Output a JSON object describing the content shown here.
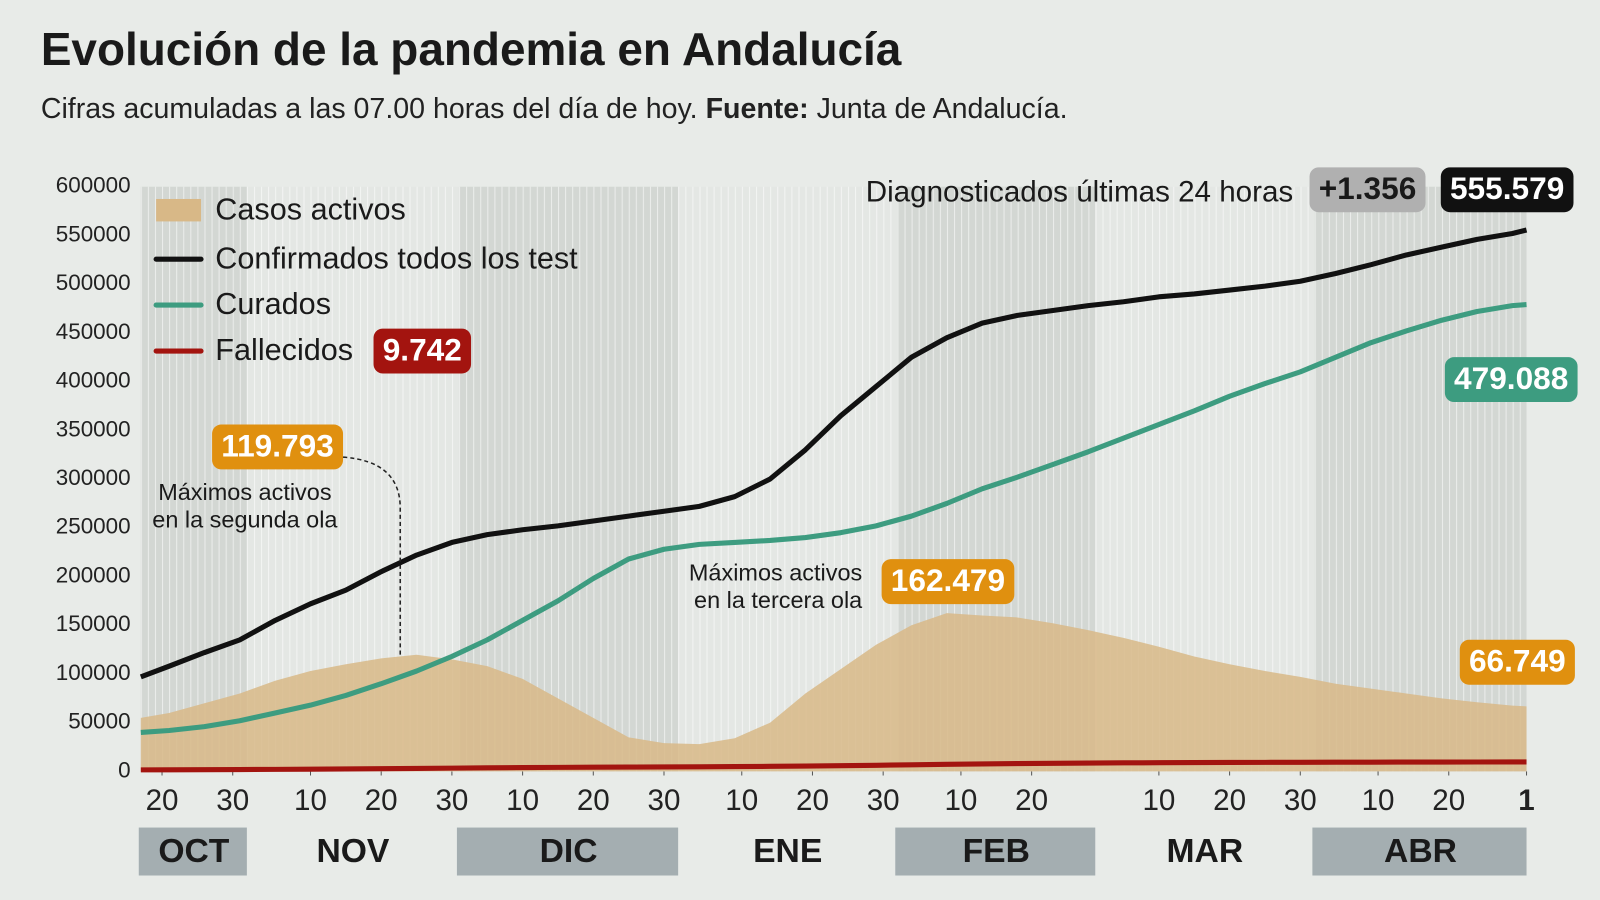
{
  "chart_data": {
    "type": "line",
    "title": "Evolución de la pandemia en Andalucía",
    "subtitle": [
      "Cifras acumuladas a las 07.00 horas del día de hoy.",
      "Fuente:",
      "Junta de Andalucía."
    ],
    "x": [
      16,
      20,
      25,
      30,
      35,
      40,
      45,
      50,
      55,
      60,
      65,
      70,
      75,
      80,
      85,
      90,
      95,
      100,
      105,
      110,
      115,
      120,
      125,
      130,
      135,
      140,
      145,
      150,
      155,
      160,
      165,
      170,
      175,
      180,
      185,
      190,
      195,
      200,
      205,
      210,
      212
    ],
    "xlim": [
      16,
      212
    ],
    "xticks": [
      {
        "value": 19,
        "label": "20"
      },
      {
        "value": 29,
        "label": "30"
      },
      {
        "value": 40,
        "label": "10"
      },
      {
        "value": 50,
        "label": "20"
      },
      {
        "value": 60,
        "label": "30"
      },
      {
        "value": 70,
        "label": "10"
      },
      {
        "value": 80,
        "label": "20"
      },
      {
        "value": 90,
        "label": "30"
      },
      {
        "value": 101,
        "label": "10"
      },
      {
        "value": 111,
        "label": "20"
      },
      {
        "value": 121,
        "label": "30"
      },
      {
        "value": 132,
        "label": "10"
      },
      {
        "value": 142,
        "label": "20"
      },
      {
        "value": 160,
        "label": "10"
      },
      {
        "value": 170,
        "label": "20"
      },
      {
        "value": 180,
        "label": "30"
      },
      {
        "value": 191,
        "label": "10"
      },
      {
        "value": 201,
        "label": "20"
      },
      {
        "value": 212,
        "label": "1"
      }
    ],
    "months": [
      {
        "label": "OCT",
        "start": 16,
        "end": 31
      },
      {
        "label": "NOV",
        "start": 31,
        "end": 61
      },
      {
        "label": "DIC",
        "start": 61,
        "end": 92
      },
      {
        "label": "ENE",
        "start": 92,
        "end": 123
      },
      {
        "label": "FEB",
        "start": 123,
        "end": 151
      },
      {
        "label": "MAR",
        "start": 151,
        "end": 182
      },
      {
        "label": "ABR",
        "start": 182,
        "end": 212
      }
    ],
    "ylim": [
      0,
      600000
    ],
    "yticks": [
      0,
      50000,
      100000,
      150000,
      200000,
      250000,
      300000,
      350000,
      400000,
      450000,
      500000,
      550000,
      600000
    ],
    "grid": false,
    "legend": "top-left",
    "series": [
      {
        "name": "Casos activos",
        "style": "area",
        "color": "#d8b887",
        "values": [
          55000,
          60000,
          70000,
          80000,
          93000,
          103000,
          110000,
          116000,
          119793,
          115000,
          108000,
          95000,
          75000,
          55000,
          35000,
          29000,
          28000,
          34000,
          50000,
          80000,
          105000,
          130000,
          150000,
          162479,
          160000,
          158000,
          152000,
          145000,
          137000,
          128000,
          118000,
          110000,
          103000,
          97000,
          90000,
          85000,
          80000,
          75000,
          71000,
          67500,
          66749
        ],
        "value_labels": [
          null,
          null,
          null,
          null,
          null,
          null,
          null,
          null,
          "119.793",
          null,
          null,
          null,
          null,
          null,
          null,
          null,
          null,
          null,
          null,
          null,
          null,
          null,
          null,
          "162.479",
          null,
          null,
          null,
          null,
          null,
          null,
          null,
          null,
          null,
          null,
          null,
          null,
          null,
          null,
          null,
          null,
          "66.749"
        ]
      },
      {
        "name": "Confirmados todos los test",
        "style": "line",
        "color": "#111111",
        "values": [
          97000,
          108000,
          122000,
          135000,
          155000,
          172000,
          186000,
          205000,
          222000,
          235000,
          243000,
          248000,
          252000,
          257000,
          262000,
          267000,
          272000,
          282000,
          300000,
          330000,
          365000,
          395000,
          425000,
          445000,
          460000,
          468000,
          473000,
          478000,
          482000,
          487000,
          490000,
          494000,
          498000,
          503000,
          511000,
          520000,
          530000,
          538000,
          546000,
          552000,
          555579
        ],
        "value_labels": [
          null,
          null,
          null,
          null,
          null,
          null,
          null,
          null,
          null,
          null,
          null,
          null,
          null,
          null,
          null,
          null,
          null,
          null,
          null,
          null,
          null,
          null,
          null,
          null,
          null,
          null,
          null,
          null,
          null,
          null,
          null,
          null,
          null,
          null,
          null,
          null,
          null,
          null,
          null,
          null,
          "555.579"
        ]
      },
      {
        "name": "Curados",
        "style": "line",
        "color": "#3d9c80",
        "values": [
          40000,
          42000,
          46000,
          52000,
          60000,
          68000,
          78000,
          90000,
          103000,
          118000,
          135000,
          155000,
          175000,
          198000,
          218000,
          228000,
          233000,
          235000,
          237000,
          240000,
          245000,
          252000,
          262000,
          275000,
          290000,
          302000,
          315000,
          328000,
          342000,
          356000,
          370000,
          385000,
          398000,
          410000,
          425000,
          440000,
          452000,
          463000,
          472000,
          478000,
          479088
        ],
        "value_labels": [
          null,
          null,
          null,
          null,
          null,
          null,
          null,
          null,
          null,
          null,
          null,
          null,
          null,
          null,
          null,
          null,
          null,
          null,
          null,
          null,
          null,
          null,
          null,
          null,
          null,
          null,
          null,
          null,
          null,
          null,
          null,
          null,
          null,
          null,
          null,
          null,
          null,
          null,
          null,
          null,
          "479.088"
        ]
      },
      {
        "name": "Fallecidos",
        "style": "line",
        "color": "#a3140f",
        "values": [
          1600,
          1700,
          1800,
          1950,
          2100,
          2300,
          2550,
          2800,
          3100,
          3400,
          3700,
          3950,
          4150,
          4300,
          4450,
          4600,
          4750,
          4950,
          5200,
          5500,
          5900,
          6300,
          6800,
          7300,
          7700,
          8050,
          8350,
          8600,
          8800,
          8950,
          9100,
          9200,
          9300,
          9380,
          9450,
          9520,
          9580,
          9630,
          9680,
          9725,
          9742
        ],
        "value_labels": [
          null,
          null,
          null,
          null,
          null,
          null,
          null,
          null,
          null,
          null,
          null,
          null,
          null,
          null,
          null,
          null,
          null,
          null,
          null,
          null,
          null,
          null,
          null,
          null,
          null,
          null,
          null,
          null,
          null,
          null,
          null,
          null,
          null,
          null,
          null,
          null,
          null,
          null,
          null,
          null,
          "9.742"
        ]
      }
    ],
    "daily_new": {
      "label": "Diagnosticados últimas 24 horas",
      "value": 1356,
      "value_label": "+1.356"
    },
    "annotations": [
      {
        "lines": [
          "Máximos activos",
          "en la segunda ola"
        ]
      },
      {
        "lines": [
          "Máximos activos",
          "en la tercera ola"
        ]
      }
    ]
  }
}
